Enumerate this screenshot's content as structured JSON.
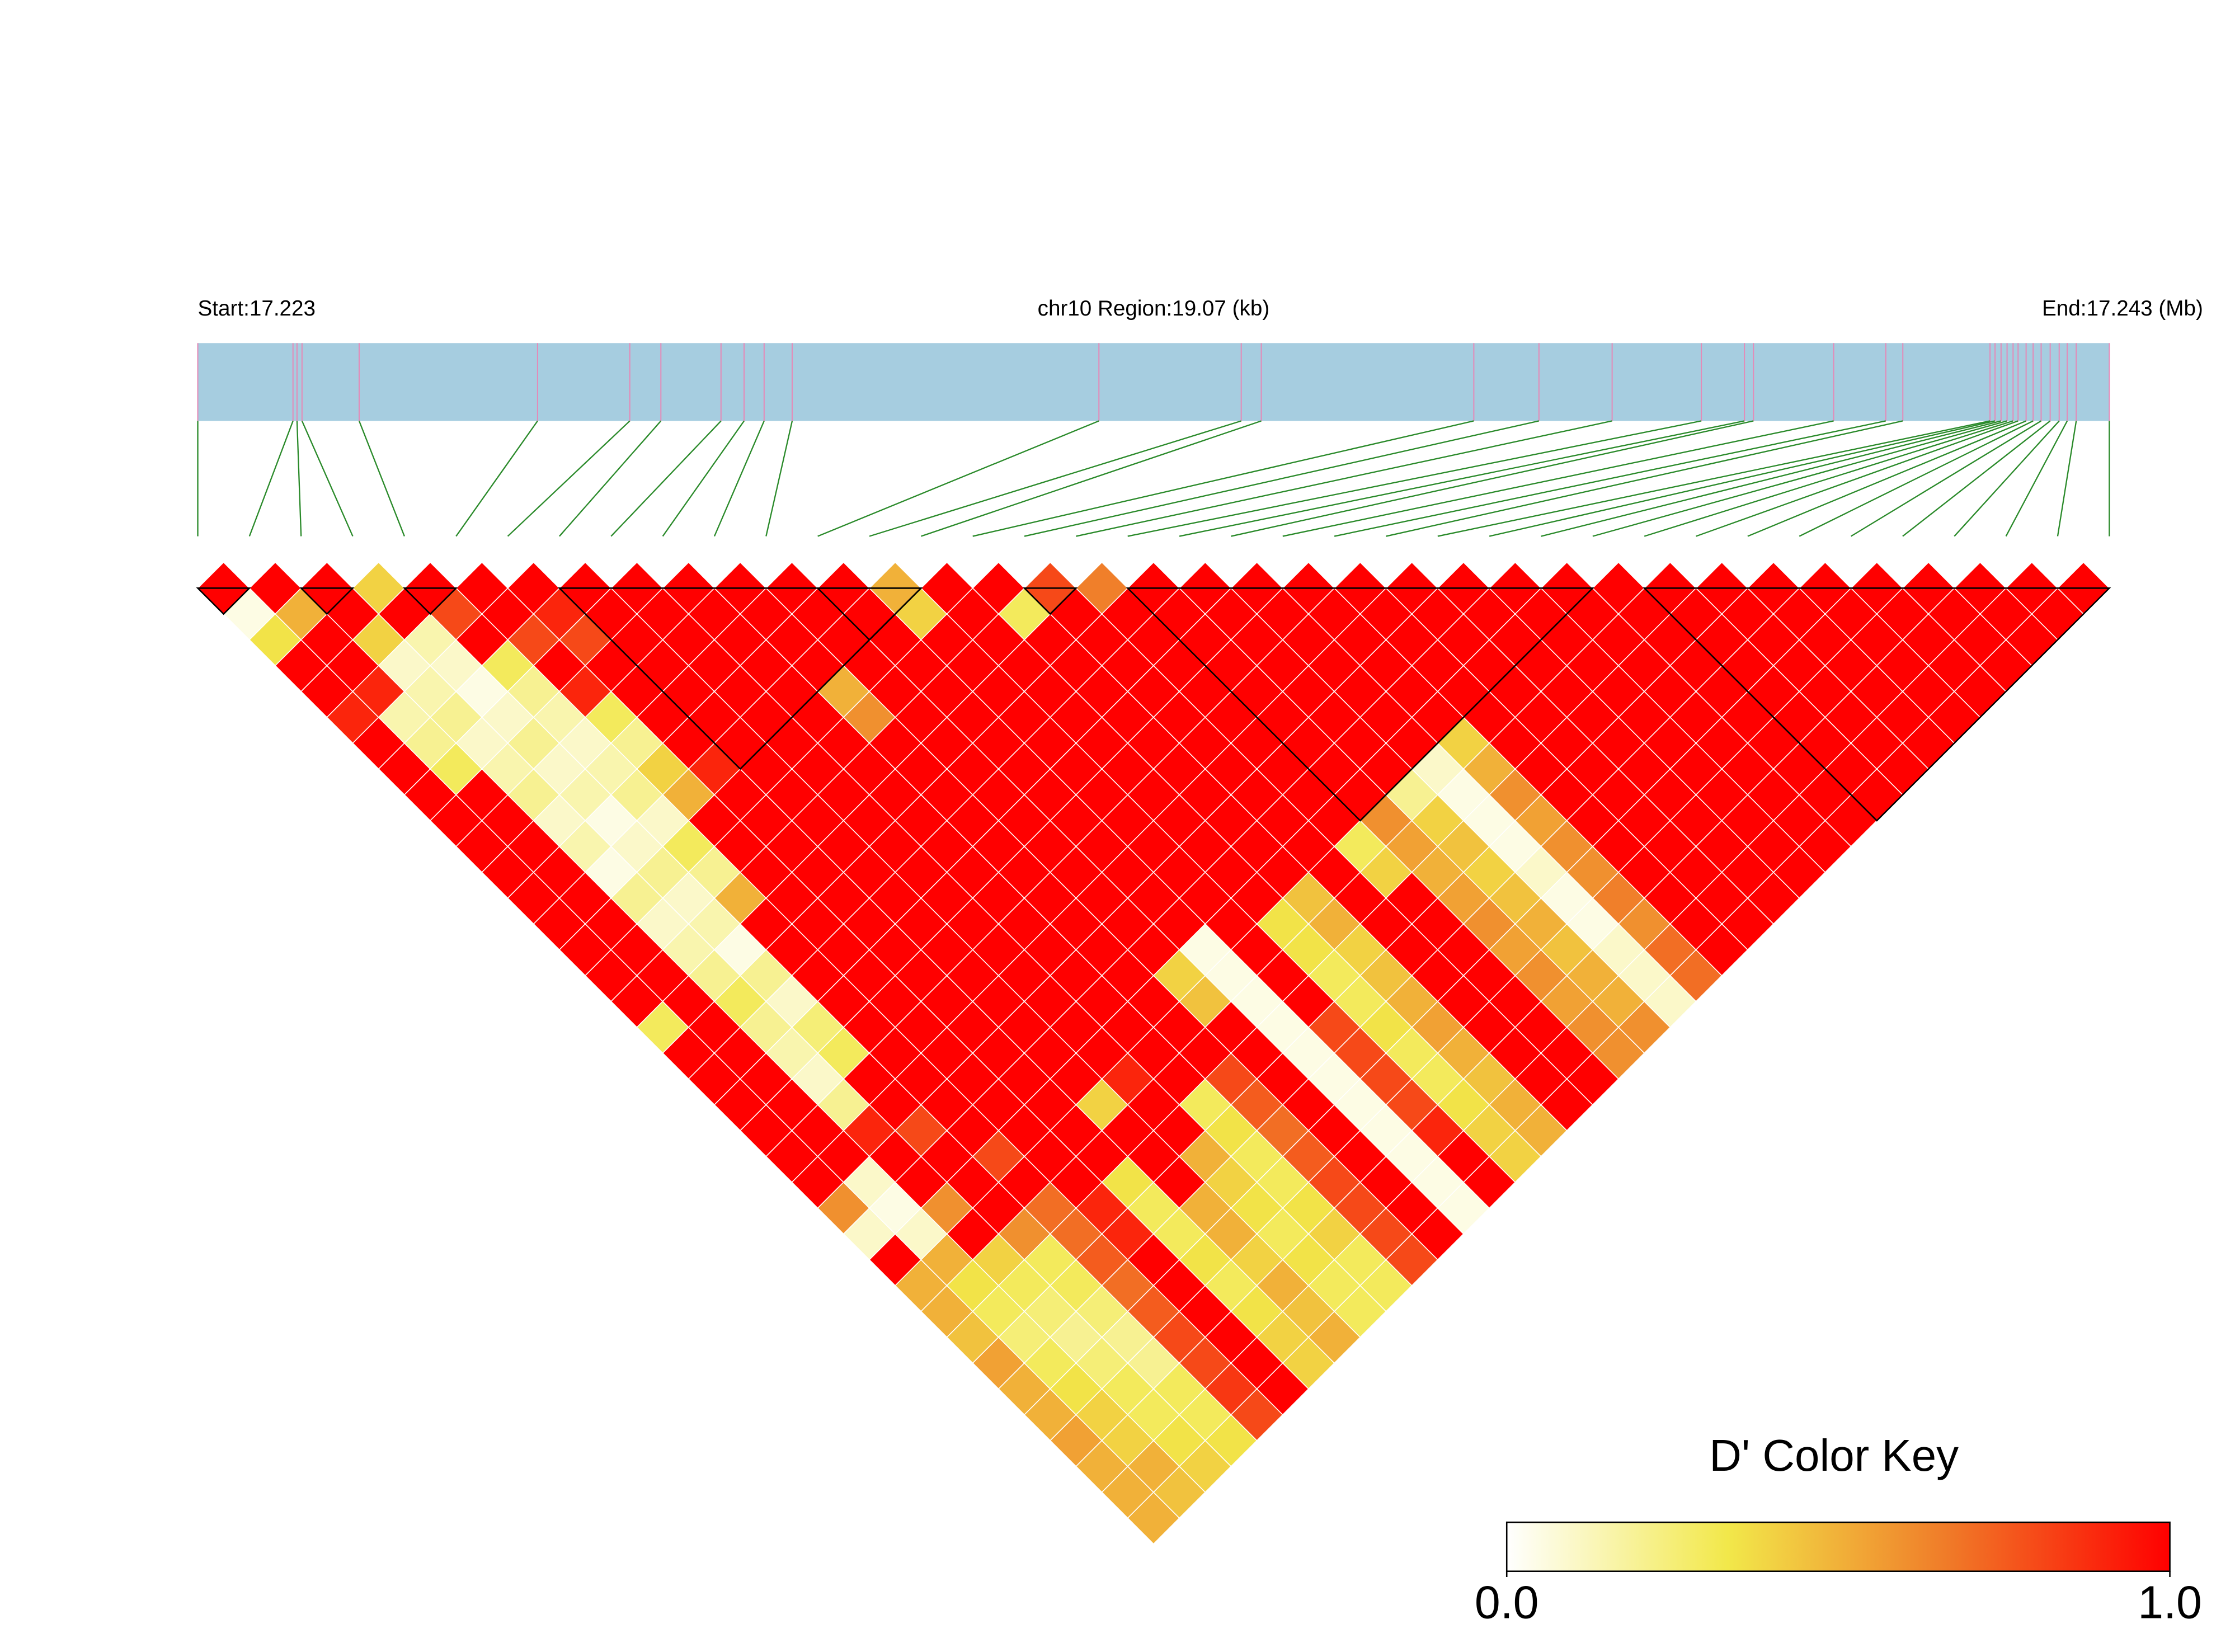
{
  "chart_data": {
    "type": "ld_heatmap",
    "start_label": "Start:17.223",
    "region_label": "chr10 Region:19.07 (kb)",
    "end_label": "End:17.243 (Mb)",
    "position_range": [
      0,
      19.07
    ],
    "snp_positions_kb": [
      0,
      0.95,
      0.99,
      1.04,
      1.61,
      3.39,
      4.31,
      4.62,
      5.22,
      5.45,
      5.65,
      5.93,
      8.99,
      10.41,
      10.61,
      12.73,
      13.38,
      14.11,
      15.0,
      15.43,
      15.52,
      16.32,
      16.84,
      17.01,
      17.88,
      17.93,
      17.99,
      18.05,
      18.11,
      18.16,
      18.24,
      18.31,
      18.39,
      18.48,
      18.57,
      18.65,
      18.74,
      19.07
    ],
    "ld": [
      [
        1,
        0.05,
        0.35,
        1,
        1,
        0.9,
        1,
        1,
        1,
        1,
        1,
        1,
        1,
        1,
        1,
        1,
        1,
        0.3,
        1,
        1,
        1,
        1,
        1,
        1,
        0.6,
        0.1,
        1,
        0.5,
        0.5,
        0.45,
        0.55,
        0.5,
        0.5,
        0.55,
        0.5,
        0.5,
        0.5
      ],
      [
        1,
        0.5,
        1,
        1,
        0.9,
        0.15,
        0.2,
        0.3,
        1,
        1,
        1,
        1,
        1,
        1,
        1,
        1,
        1,
        1,
        1,
        1,
        1,
        1,
        1,
        0.1,
        0.05,
        0.1,
        0.5,
        0.35,
        0.3,
        0.25,
        0.3,
        0.35,
        0.4,
        0.4,
        0.5,
        0.45
      ],
      [
        1,
        1,
        0.4,
        0.1,
        0.15,
        0.2,
        0.1,
        0.15,
        0.2,
        0.1,
        0.15,
        0.05,
        0.2,
        0.1,
        0.15,
        0.2,
        0.3,
        0.2,
        0.15,
        0.1,
        0.2,
        0.9,
        1,
        1,
        0.6,
        1,
        0.4,
        0.3,
        0.25,
        0.2,
        0.25,
        0.3,
        0.3,
        0.35,
        0.4
      ],
      [
        0.4,
        1,
        0.15,
        0.1,
        0.05,
        0.1,
        0.2,
        0.1,
        0.15,
        0.05,
        0.1,
        0.2,
        0.1,
        0.15,
        0.05,
        0.2,
        0.1,
        0.25,
        0.3,
        1,
        1,
        0.8,
        1,
        1,
        1,
        0.6,
        0.3,
        0.3,
        0.25,
        0.2,
        0.2,
        0.3,
        0.3,
        0.35
      ],
      [
        1,
        0.8,
        1,
        0.3,
        0.2,
        0.15,
        0.1,
        0.15,
        0.2,
        0.1,
        0.3,
        0.2,
        0.5,
        1,
        1,
        1,
        1,
        1,
        1,
        1,
        1,
        1,
        0.8,
        1,
        0.7,
        0.7,
        0.75,
        0.7,
        0.75,
        0.8,
        0.8,
        0.85,
        0.8
      ],
      [
        1,
        1,
        0.8,
        1,
        0.9,
        0.3,
        0.2,
        0.4,
        0.5,
        1,
        1,
        1,
        1,
        1,
        1,
        1,
        1,
        1,
        1,
        1,
        1,
        1,
        1,
        1,
        0.9,
        0.9,
        1,
        1,
        1,
        1,
        1,
        1
      ],
      [
        1,
        0.9,
        0.8,
        1,
        1,
        1,
        1,
        0.9,
        1,
        1,
        1,
        1,
        1,
        1,
        1,
        1,
        1,
        1,
        1,
        1,
        1,
        1,
        1,
        0.35,
        0.3,
        0.3,
        0.35,
        0.3,
        0.35,
        0.4,
        0.4
      ],
      [
        1,
        1,
        1,
        1,
        1,
        1,
        1,
        1,
        1,
        1,
        1,
        1,
        1,
        1,
        1,
        1,
        1,
        1,
        1,
        1,
        0.4,
        1,
        1,
        1,
        0.5,
        0.5,
        0.4,
        0.5,
        0.45,
        0.5
      ],
      [
        1,
        1,
        1,
        1,
        1,
        1,
        1,
        1,
        1,
        1,
        1,
        1,
        1,
        1,
        1,
        1,
        1,
        1,
        1,
        0.9,
        1,
        1,
        0.5,
        0.4,
        0.35,
        0.3,
        0.35,
        0.3,
        0.3
      ],
      [
        1,
        1,
        1,
        1,
        1,
        1,
        1,
        1,
        1,
        1,
        1,
        1,
        1,
        1,
        1,
        1,
        1,
        1,
        1,
        1,
        0.3,
        0.35,
        0.3,
        0.3,
        0.35,
        0.4,
        0.3,
        0.3
      ],
      [
        1,
        1,
        1,
        1,
        0.5,
        0.6,
        1,
        1,
        1,
        1,
        1,
        1,
        1,
        1,
        1,
        1,
        1,
        1,
        1,
        0.8,
        0.75,
        0.7,
        0.75,
        0.8,
        0.8,
        0.8,
        0.8
      ],
      [
        1,
        1,
        1,
        1,
        1,
        1,
        1,
        1,
        1,
        1,
        1,
        1,
        1,
        1,
        1,
        0.4,
        0.45,
        1,
        1,
        1,
        1,
        1,
        1,
        1,
        1,
        1
      ],
      [
        1,
        1,
        1,
        1,
        1,
        1,
        1,
        1,
        1,
        1,
        1,
        1,
        1,
        1,
        0.05,
        0.05,
        0.05,
        0.05,
        0.05,
        0.05,
        0.05,
        0.05,
        0.05,
        0.05,
        0.05
      ],
      [
        0.5,
        0.4,
        1,
        1,
        1,
        1,
        1,
        1,
        1,
        1,
        1,
        1,
        1,
        1,
        1,
        1,
        1,
        0.8,
        0.8,
        0.8,
        0.8,
        0.9,
        1,
        1
      ],
      [
        1,
        1,
        1,
        1,
        1,
        1,
        1,
        1,
        1,
        1,
        1,
        1,
        1,
        0.35,
        0.35,
        0.3,
        0.3,
        0.35,
        0.3,
        0.3,
        0.35,
        0.4,
        0.4
      ],
      [
        1,
        0.3,
        1,
        1,
        1,
        1,
        1,
        1,
        1,
        1,
        1,
        1,
        0.45,
        0.5,
        0.4,
        0.45,
        0.5,
        0.55,
        0.5,
        0.45,
        0.5,
        0.5
      ],
      [
        0.8,
        1,
        1,
        1,
        1,
        1,
        1,
        1,
        1,
        1,
        1,
        1,
        1,
        1,
        1,
        1,
        1,
        1,
        1,
        1,
        1
      ],
      [
        0.65,
        1,
        1,
        1,
        1,
        1,
        1,
        1,
        1,
        1,
        0.3,
        0.4,
        1,
        1,
        1,
        1,
        1,
        1,
        1,
        1
      ],
      [
        1,
        1,
        1,
        1,
        1,
        1,
        1,
        1,
        1,
        0.6,
        0.55,
        0.5,
        0.55,
        0.6,
        0.55,
        0.6,
        0.55,
        0.6,
        0.6
      ],
      [
        1,
        1,
        1,
        1,
        1,
        1,
        1,
        1,
        0.2,
        0.4,
        0.45,
        0.4,
        0.45,
        0.5,
        0.45,
        0.5,
        0.5,
        0.6
      ],
      [
        1,
        1,
        1,
        1,
        1,
        1,
        1,
        0.1,
        0.05,
        0.05,
        0.05,
        0.1,
        0.05,
        0.05,
        0.1,
        0.1,
        0.1
      ],
      [
        1,
        1,
        1,
        1,
        1,
        1,
        0.4,
        0.5,
        0.6,
        0.55,
        0.6,
        0.6,
        0.65,
        0.6,
        0.7,
        0.7
      ],
      [
        1,
        1,
        1,
        1,
        1,
        1,
        1,
        1,
        1,
        1,
        1,
        1,
        1,
        1,
        1
      ],
      [
        1,
        1,
        1,
        1,
        1,
        1,
        1,
        1,
        1,
        1,
        1,
        1,
        1,
        1
      ],
      [
        1,
        1,
        1,
        1,
        1,
        1,
        1,
        1,
        1,
        1,
        1,
        1,
        1
      ],
      [
        1,
        1,
        1,
        1,
        1,
        1,
        1,
        1,
        1,
        1,
        1,
        1
      ],
      [
        1,
        1,
        1,
        1,
        1,
        1,
        1,
        1,
        1,
        1,
        1
      ],
      [
        1,
        1,
        1,
        1,
        1,
        1,
        1,
        1,
        1,
        1
      ],
      [
        1,
        1,
        1,
        1,
        1,
        1,
        1,
        1,
        1
      ],
      [
        1,
        1,
        1,
        1,
        1,
        1,
        1,
        1
      ],
      [
        1,
        1,
        1,
        1,
        1,
        1,
        1
      ],
      [
        1,
        1,
        1,
        1,
        1,
        1
      ],
      [
        1,
        1,
        1,
        1,
        1
      ],
      [
        1,
        1,
        1,
        1
      ],
      [
        1,
        1,
        1
      ],
      [
        1,
        1
      ],
      [
        1
      ]
    ],
    "blocks": [
      [
        0,
        1
      ],
      [
        2,
        3
      ],
      [
        4,
        5
      ],
      [
        7,
        14
      ],
      [
        12,
        14
      ],
      [
        16,
        17
      ],
      [
        18,
        27
      ],
      [
        28,
        37
      ]
    ],
    "track_color": "#a6cde0",
    "snp_line_color": "#e38bb8",
    "connector_color": "#2a8a2a",
    "color_key": {
      "title": "D' Color Key",
      "lim": [
        0,
        1
      ],
      "colors": [
        "#ffffff",
        "#f2e84a",
        "#f07a28",
        "#ff0000"
      ],
      "ticks": [
        {
          "value": 0,
          "label": "0.0"
        },
        {
          "value": 1,
          "label": "1.0"
        }
      ]
    }
  }
}
